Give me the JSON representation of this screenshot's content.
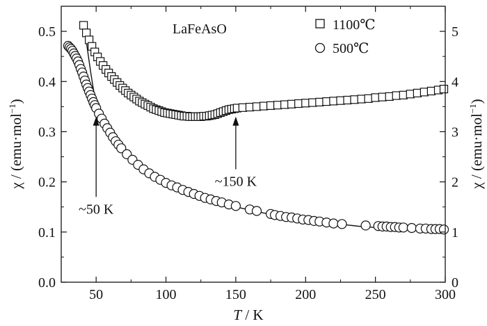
{
  "chart_data": {
    "type": "scatter",
    "title": "LaFeAsO",
    "xlabel": {
      "italic": "T",
      "rest": " / K"
    },
    "ylabel_left": {
      "prefix": "χ / (emu·mol",
      "sup": "−1",
      "suffix": ")"
    },
    "ylabel_right": {
      "prefix": "χ / (emu·mol",
      "sup": "−1",
      "suffix": ")"
    },
    "xlim": [
      25,
      300
    ],
    "ylim": [
      0,
      0.55
    ],
    "ylim_right": [
      0,
      5.5
    ],
    "xticks": [
      50,
      100,
      150,
      200,
      250,
      300
    ],
    "yticks": [
      0.0,
      0.1,
      0.2,
      0.3,
      0.4,
      0.5
    ],
    "yticks_right": [
      0,
      1,
      2,
      3,
      4,
      5
    ],
    "ytick_labels": [
      "0.0",
      "0.1",
      "0.2",
      "0.3",
      "0.4",
      "0.5"
    ],
    "ytick_labels_right": [
      "0",
      "1",
      "2",
      "3",
      "4",
      "5"
    ],
    "grid": false,
    "legend_position": "top-right",
    "series": [
      {
        "name": "1100℃",
        "axis": "right",
        "marker": "square",
        "points": [
          [
            41,
            5.12
          ],
          [
            43,
            4.97
          ],
          [
            45,
            4.83
          ],
          [
            47,
            4.7
          ],
          [
            49,
            4.59
          ],
          [
            51,
            4.49
          ],
          [
            53,
            4.4
          ],
          [
            55,
            4.32
          ],
          [
            57,
            4.24
          ],
          [
            59,
            4.17
          ],
          [
            61,
            4.1
          ],
          [
            63,
            4.04
          ],
          [
            65,
            3.98
          ],
          [
            67,
            3.92
          ],
          [
            69,
            3.87
          ],
          [
            71,
            3.82
          ],
          [
            73,
            3.77
          ],
          [
            75,
            3.73
          ],
          [
            77,
            3.69
          ],
          [
            79,
            3.65
          ],
          [
            81,
            3.61
          ],
          [
            83,
            3.58
          ],
          [
            85,
            3.55
          ],
          [
            87,
            3.52
          ],
          [
            89,
            3.49
          ],
          [
            91,
            3.46
          ],
          [
            93,
            3.44
          ],
          [
            95,
            3.42
          ],
          [
            97,
            3.4
          ],
          [
            99,
            3.38
          ],
          [
            101,
            3.37
          ],
          [
            103,
            3.36
          ],
          [
            105,
            3.35
          ],
          [
            107,
            3.34
          ],
          [
            109,
            3.33
          ],
          [
            111,
            3.32
          ],
          [
            113,
            3.31
          ],
          [
            115,
            3.31
          ],
          [
            117,
            3.3
          ],
          [
            119,
            3.3
          ],
          [
            121,
            3.3
          ],
          [
            123,
            3.3
          ],
          [
            125,
            3.3
          ],
          [
            127,
            3.31
          ],
          [
            129,
            3.31
          ],
          [
            131,
            3.32
          ],
          [
            133,
            3.33
          ],
          [
            135,
            3.34
          ],
          [
            137,
            3.36
          ],
          [
            139,
            3.38
          ],
          [
            141,
            3.4
          ],
          [
            143,
            3.42
          ],
          [
            145,
            3.44
          ],
          [
            147,
            3.45
          ],
          [
            149,
            3.46
          ],
          [
            151,
            3.47
          ],
          [
            155,
            3.48
          ],
          [
            160,
            3.49
          ],
          [
            165,
            3.5
          ],
          [
            170,
            3.51
          ],
          [
            175,
            3.52
          ],
          [
            180,
            3.53
          ],
          [
            185,
            3.54
          ],
          [
            190,
            3.55
          ],
          [
            195,
            3.56
          ],
          [
            200,
            3.57
          ],
          [
            205,
            3.58
          ],
          [
            210,
            3.59
          ],
          [
            215,
            3.6
          ],
          [
            220,
            3.61
          ],
          [
            225,
            3.62
          ],
          [
            230,
            3.63
          ],
          [
            235,
            3.64
          ],
          [
            240,
            3.65
          ],
          [
            245,
            3.66
          ],
          [
            250,
            3.68
          ],
          [
            255,
            3.69
          ],
          [
            260,
            3.7
          ],
          [
            265,
            3.72
          ],
          [
            270,
            3.73
          ],
          [
            275,
            3.75
          ],
          [
            280,
            3.77
          ],
          [
            285,
            3.79
          ],
          [
            290,
            3.81
          ],
          [
            295,
            3.83
          ],
          [
            299,
            3.85
          ]
        ]
      },
      {
        "name": "500℃",
        "axis": "left",
        "marker": "circle",
        "points": [
          [
            30,
            0.471
          ],
          [
            31,
            0.468
          ],
          [
            32,
            0.465
          ],
          [
            33,
            0.461
          ],
          [
            34,
            0.456
          ],
          [
            35,
            0.451
          ],
          [
            36,
            0.446
          ],
          [
            37,
            0.44
          ],
          [
            38,
            0.433
          ],
          [
            39,
            0.425
          ],
          [
            40,
            0.418
          ],
          [
            41,
            0.41
          ],
          [
            42,
            0.402
          ],
          [
            43,
            0.394
          ],
          [
            44,
            0.387
          ],
          [
            45,
            0.38
          ],
          [
            46,
            0.373
          ],
          [
            47,
            0.366
          ],
          [
            48,
            0.359
          ],
          [
            49,
            0.353
          ],
          [
            50,
            0.347
          ],
          [
            52,
            0.336
          ],
          [
            54,
            0.326
          ],
          [
            56,
            0.316
          ],
          [
            58,
            0.307
          ],
          [
            60,
            0.298
          ],
          [
            62,
            0.289
          ],
          [
            64,
            0.281
          ],
          [
            66,
            0.274
          ],
          [
            68,
            0.267
          ],
          [
            72,
            0.255
          ],
          [
            76,
            0.244
          ],
          [
            80,
            0.234
          ],
          [
            84,
            0.225
          ],
          [
            88,
            0.217
          ],
          [
            92,
            0.21
          ],
          [
            96,
            0.204
          ],
          [
            100,
            0.198
          ],
          [
            104,
            0.193
          ],
          [
            108,
            0.189
          ],
          [
            112,
            0.184
          ],
          [
            116,
            0.18
          ],
          [
            120,
            0.176
          ],
          [
            124,
            0.172
          ],
          [
            128,
            0.168
          ],
          [
            132,
            0.165
          ],
          [
            136,
            0.162
          ],
          [
            140,
            0.159
          ],
          [
            145,
            0.155
          ],
          [
            150,
            0.152
          ],
          [
            160,
            0.145
          ],
          [
            165,
            0.142
          ],
          [
            175,
            0.136
          ],
          [
            178,
            0.134
          ],
          [
            182,
            0.132
          ],
          [
            186,
            0.13
          ],
          [
            190,
            0.129
          ],
          [
            194,
            0.127
          ],
          [
            198,
            0.125
          ],
          [
            202,
            0.124
          ],
          [
            206,
            0.122
          ],
          [
            210,
            0.121
          ],
          [
            215,
            0.119
          ],
          [
            220,
            0.117
          ],
          [
            226,
            0.116
          ],
          [
            243,
            0.113
          ],
          [
            252,
            0.112
          ],
          [
            255,
            0.111
          ],
          [
            258,
            0.111
          ],
          [
            261,
            0.11
          ],
          [
            264,
            0.11
          ],
          [
            267,
            0.109
          ],
          [
            270,
            0.109
          ],
          [
            276,
            0.108
          ],
          [
            282,
            0.107
          ],
          [
            286,
            0.107
          ],
          [
            290,
            0.106
          ],
          [
            293,
            0.106
          ],
          [
            296,
            0.106
          ],
          [
            299,
            0.105
          ]
        ]
      }
    ],
    "fit_curve": {
      "style": "solid",
      "points": [
        [
          42,
          0.5
        ],
        [
          44,
          0.46
        ],
        [
          46,
          0.42
        ],
        [
          48,
          0.385
        ],
        [
          50,
          0.356
        ],
        [
          52,
          0.335
        ],
        [
          55,
          0.318
        ],
        [
          58,
          0.303
        ],
        [
          62,
          0.287
        ],
        [
          66,
          0.273
        ],
        [
          70,
          0.261
        ],
        [
          75,
          0.248
        ],
        [
          80,
          0.236
        ],
        [
          90,
          0.216
        ],
        [
          100,
          0.2
        ],
        [
          110,
          0.187
        ],
        [
          120,
          0.176
        ],
        [
          130,
          0.166
        ],
        [
          140,
          0.158
        ],
        [
          150,
          0.15
        ],
        [
          160,
          0.144
        ],
        [
          170,
          0.138
        ],
        [
          180,
          0.133
        ],
        [
          190,
          0.128
        ],
        [
          200,
          0.124
        ],
        [
          210,
          0.12
        ],
        [
          220,
          0.117
        ],
        [
          230,
          0.114
        ],
        [
          240,
          0.111
        ],
        [
          250,
          0.109
        ],
        [
          260,
          0.107
        ],
        [
          270,
          0.105
        ],
        [
          280,
          0.103
        ],
        [
          290,
          0.102
        ],
        [
          300,
          0.1
        ]
      ]
    },
    "annotations": [
      {
        "text": "~50 K",
        "x": 50,
        "y_from": 0.17,
        "y_to": 0.33
      },
      {
        "text": "~150 K",
        "x": 150,
        "y_from": 0.225,
        "y_to": 0.33
      }
    ]
  }
}
